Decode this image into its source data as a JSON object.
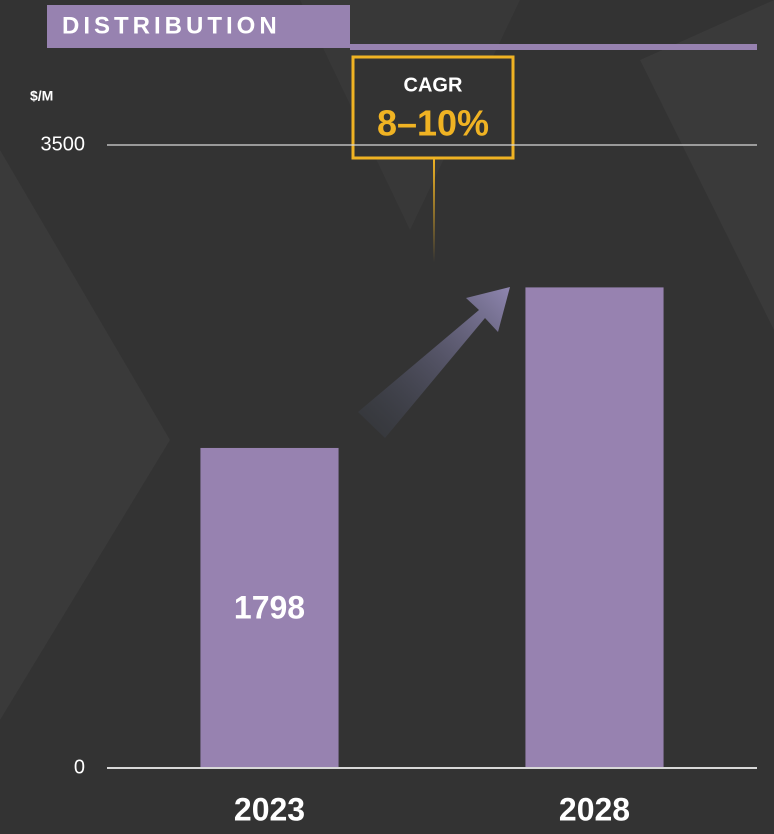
{
  "chart_data": {
    "type": "bar",
    "title": "DISTRIBUTION",
    "y_label": "$/M",
    "categories": [
      "2023",
      "2028"
    ],
    "values": [
      1798,
      2700
    ],
    "value_labels": [
      "1798",
      null
    ],
    "color": "#9782b0",
    "ylim": [
      0,
      3500
    ],
    "yticks": [
      0,
      3500
    ],
    "grid": true,
    "annotation": {
      "title": "CAGR",
      "text": "8–10%"
    }
  }
}
